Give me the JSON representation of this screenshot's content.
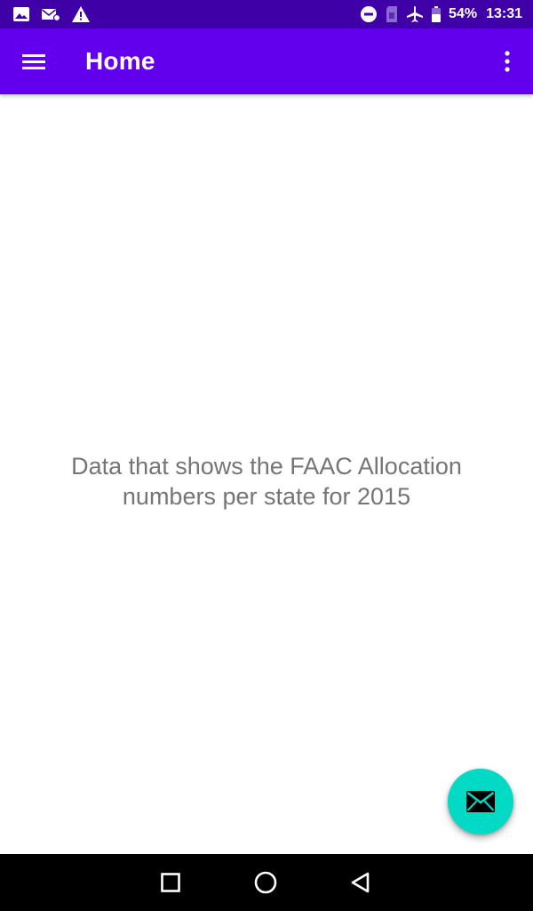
{
  "status_bar": {
    "left_icons": [
      "image-icon",
      "mail-icon",
      "warning-icon"
    ],
    "right_icons": [
      "do-not-disturb-icon",
      "sim-card-icon",
      "airplane-icon",
      "battery-icon"
    ],
    "battery_text": "54%",
    "time": "13:31"
  },
  "app_bar": {
    "title": "Home",
    "menu_icon": "hamburger-menu-icon",
    "overflow_icon": "more-vert-icon"
  },
  "content": {
    "message": "Data that shows the FAAC Allocation numbers per state for 2015"
  },
  "fab": {
    "icon": "mail-icon"
  },
  "nav_bar": {
    "buttons": [
      "recents-icon",
      "home-icon",
      "back-icon"
    ]
  },
  "colors": {
    "status_bar": "#3f00a7",
    "app_bar": "#6200ee",
    "fab": "#03dac5",
    "text_secondary": "#757575",
    "nav_bar": "#000000"
  }
}
